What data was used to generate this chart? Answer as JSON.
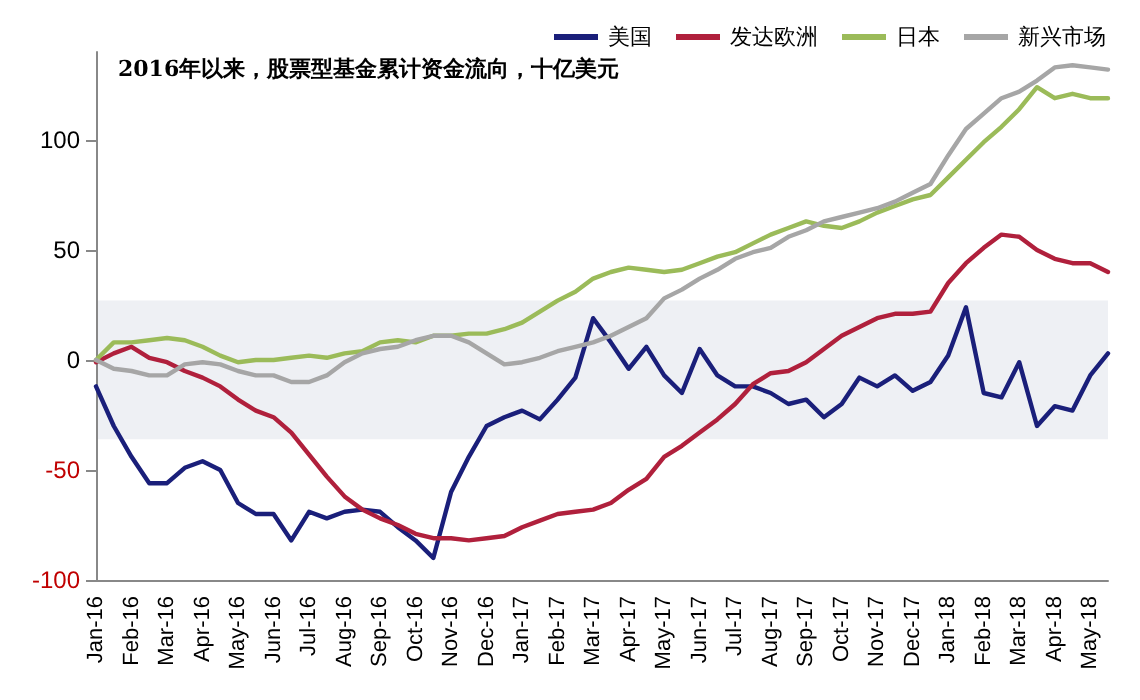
{
  "chart_data": {
    "type": "line",
    "title": "2016年以来，股票型基金累计资金流向，十亿美元",
    "categories": [
      "Jan-16",
      null,
      "Feb-16",
      null,
      "Mar-16",
      null,
      "Apr-16",
      null,
      "May-16",
      null,
      "Jun-16",
      null,
      "Jul-16",
      null,
      "Aug-16",
      null,
      "Sep-16",
      null,
      "Oct-16",
      null,
      "Nov-16",
      null,
      "Dec-16",
      null,
      "Jan-17",
      null,
      "Feb-17",
      null,
      "Mar-17",
      null,
      "Apr-17",
      null,
      "May-17",
      null,
      "Jun-17",
      null,
      "Jul-17",
      null,
      "Aug-17",
      null,
      "Sep-17",
      null,
      "Oct-17",
      null,
      "Nov-17",
      null,
      "Dec-17",
      null,
      "Jan-18",
      null,
      "Feb-18",
      null,
      "Mar-18",
      null,
      "Apr-18",
      null,
      "May-18",
      null
    ],
    "series": [
      {
        "name": "美国",
        "color": "#1a1f7a",
        "values": [
          -12,
          -30,
          -44,
          -56,
          -56,
          -49,
          -46,
          -50,
          -65,
          -70,
          -70,
          -82,
          -69,
          -72,
          -69,
          -68,
          -69,
          -76,
          -82,
          -90,
          -60,
          -44,
          -30,
          -26,
          -23,
          -27,
          -18,
          -8,
          19,
          8,
          -4,
          6,
          -7,
          -15,
          5,
          -7,
          -12,
          -12,
          -15,
          -20,
          -18,
          -26,
          -20,
          -8,
          -12,
          -7,
          -14,
          -10,
          2,
          24,
          -15,
          -17,
          -1,
          -30,
          -21,
          -23,
          -7,
          3
        ]
      },
      {
        "name": "发达欧洲",
        "color": "#b0203c",
        "values": [
          -1,
          3,
          6,
          1,
          -1,
          -5,
          -8,
          -12,
          -18,
          -23,
          -26,
          -33,
          -43,
          -53,
          -62,
          -68,
          -72,
          -75,
          -79,
          -81,
          -81,
          -82,
          -81,
          -80,
          -76,
          -73,
          -70,
          -69,
          -68,
          -65,
          -59,
          -54,
          -44,
          -39,
          -33,
          -27,
          -20,
          -11,
          -6,
          -5,
          -1,
          5,
          11,
          15,
          19,
          21,
          21,
          22,
          35,
          44,
          51,
          57,
          56,
          50,
          46,
          44,
          44,
          40
        ]
      },
      {
        "name": "日本",
        "color": "#9bbb59",
        "values": [
          0,
          8,
          8,
          9,
          10,
          9,
          6,
          2,
          -1,
          0,
          0,
          1,
          2,
          1,
          3,
          4,
          8,
          9,
          8,
          11,
          11,
          12,
          12,
          14,
          17,
          22,
          27,
          31,
          37,
          40,
          42,
          41,
          40,
          41,
          44,
          47,
          49,
          53,
          57,
          60,
          63,
          61,
          60,
          63,
          67,
          70,
          73,
          75,
          83,
          91,
          99,
          106,
          114,
          124,
          119,
          121,
          119,
          119
        ]
      },
      {
        "name": "新兴市场",
        "color": "#a6a6a6",
        "values": [
          0,
          -4,
          -5,
          -7,
          -7,
          -2,
          -1,
          -2,
          -5,
          -7,
          -7,
          -10,
          -10,
          -7,
          -1,
          3,
          5,
          6,
          9,
          11,
          11,
          8,
          3,
          -2,
          -1,
          1,
          4,
          6,
          8,
          11,
          15,
          19,
          28,
          32,
          37,
          41,
          46,
          49,
          51,
          56,
          59,
          63,
          65,
          67,
          69,
          72,
          76,
          80,
          93,
          105,
          112,
          119,
          122,
          127,
          133,
          134,
          133,
          132
        ]
      }
    ],
    "ylim": [
      -100,
      140
    ],
    "yticks": [
      -100,
      -50,
      0,
      50,
      100
    ],
    "grid": false,
    "legend": "top right",
    "marker": "none",
    "line_style": "solid",
    "bands": [
      {
        "axis": "y",
        "from": -36,
        "to": 27,
        "color": "#eef0f4"
      }
    ]
  }
}
